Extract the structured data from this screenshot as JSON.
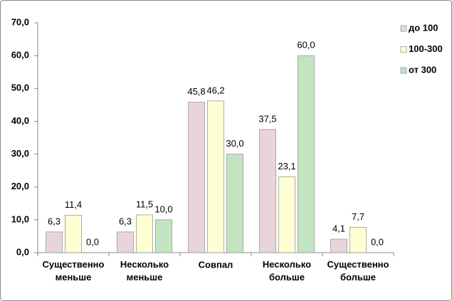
{
  "chart_data": {
    "type": "bar",
    "categories": [
      "Существенно\nменьше",
      "Несколько\nменьше",
      "Совпал",
      "Несколько\nбольше",
      "Существенно\nбольше"
    ],
    "series": [
      {
        "name": "до 100",
        "color": "#e8d4d9",
        "values": [
          6.3,
          6.3,
          45.8,
          37.5,
          4.1
        ],
        "value_labels": [
          "6,3",
          "6,3",
          "45,8",
          "37,5",
          "4,1"
        ]
      },
      {
        "name": "100-300",
        "color": "#ffffd4",
        "values": [
          11.4,
          11.5,
          46.2,
          23.1,
          7.7
        ],
        "value_labels": [
          "11,4",
          "11,5",
          "46,2",
          "23,1",
          "7,7"
        ]
      },
      {
        "name": "от 300",
        "color": "#c3e4c1",
        "values": [
          0.0,
          10.0,
          30.0,
          60.0,
          0.0
        ],
        "value_labels": [
          "0,0",
          "10,0",
          "30,0",
          "60,0",
          "0,0"
        ]
      }
    ],
    "ylim": [
      0,
      70
    ],
    "yticks": [
      {
        "value": 0,
        "label": "0,0"
      },
      {
        "value": 10,
        "label": "10,0"
      },
      {
        "value": 20,
        "label": "20,0"
      },
      {
        "value": 30,
        "label": "30,0"
      },
      {
        "value": 40,
        "label": "40,0"
      },
      {
        "value": 50,
        "label": "50,0"
      },
      {
        "value": 60,
        "label": "60,0"
      },
      {
        "value": 70,
        "label": "70,0"
      }
    ],
    "grid": false,
    "legend": "right"
  }
}
